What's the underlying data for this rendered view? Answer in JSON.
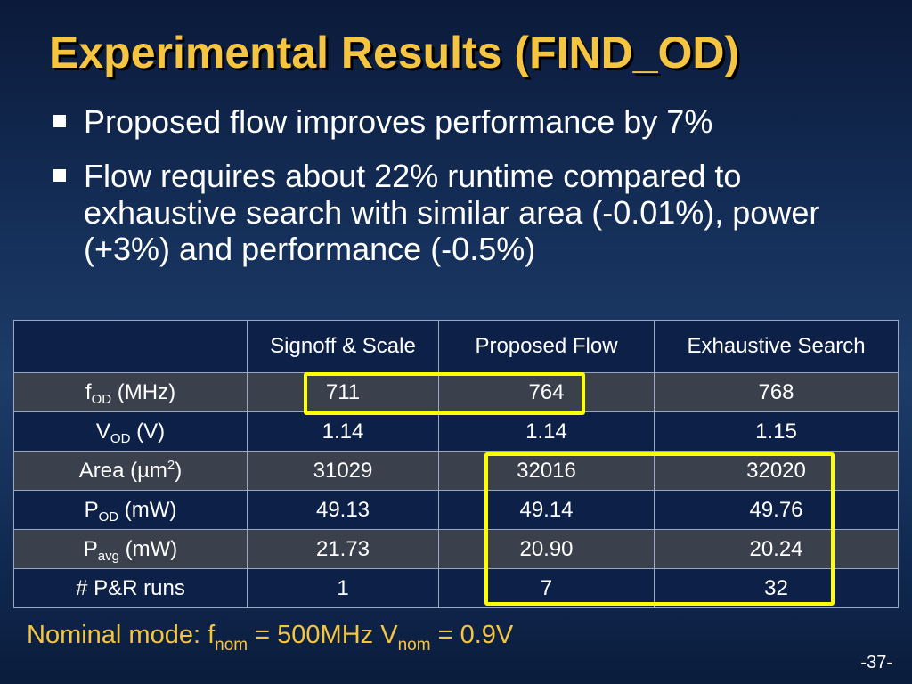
{
  "slide": {
    "title": "Experimental Results (FIND_OD)",
    "bullets": [
      "Proposed flow improves performance by 7%",
      "Flow requires about 22% runtime compared to exhaustive search with similar area (-0.01%), power (+3%) and performance (-0.5%)"
    ],
    "table": {
      "headers": [
        "",
        "Signoff & Scale",
        "Proposed Flow",
        "Exhaustive Search"
      ],
      "rows": [
        {
          "label_main": "f",
          "label_sub": "OD",
          "label_tail": " (MHz)",
          "values": [
            "711",
            "764",
            "768"
          ]
        },
        {
          "label_main": "V",
          "label_sub": "OD",
          "label_tail": " (V)",
          "values": [
            "1.14",
            "1.14",
            "1.15"
          ]
        },
        {
          "label_main": "Area (µm",
          "label_sup": "2",
          "label_tail": ")",
          "values": [
            "31029",
            "32016",
            "32020"
          ]
        },
        {
          "label_main": "P",
          "label_sub": "OD",
          "label_tail": " (mW)",
          "values": [
            "49.13",
            "49.14",
            "49.76"
          ]
        },
        {
          "label_main": "P",
          "label_sub": "avg",
          "label_tail": " (mW)",
          "values": [
            "21.73",
            "20.90",
            "20.24"
          ]
        },
        {
          "label_main": "# P&R runs",
          "label_tail": "",
          "values": [
            "1",
            "7",
            "32"
          ]
        }
      ]
    },
    "footer": {
      "prefix": "Nominal mode: f",
      "f_sub": "nom",
      "middle": " = 500MHz V",
      "v_sub": "nom",
      "suffix": " = 0.9V"
    },
    "page_number": "-37-",
    "colors": {
      "title": "#f5c542",
      "highlight": "#ffff00",
      "row_dark": "#3a404c",
      "row_light": "#0d2148"
    }
  }
}
